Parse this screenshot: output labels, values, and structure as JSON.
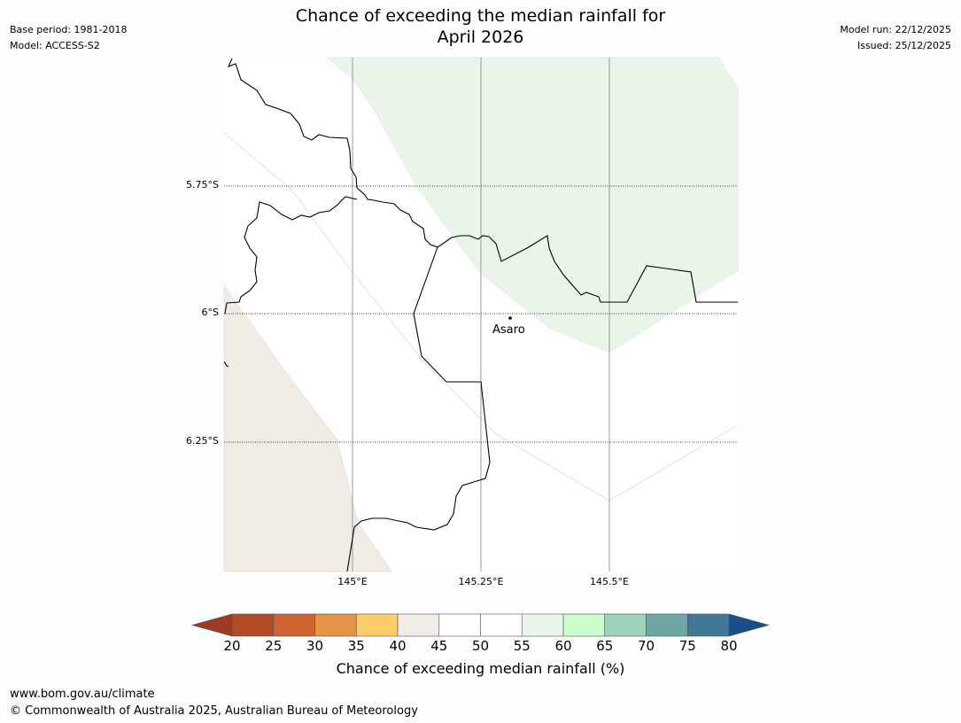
{
  "title": {
    "line1": "Chance of exceeding the median rainfall for",
    "line2": "April 2026"
  },
  "meta_left": {
    "base_period": "Base period: 1981-2018",
    "model": "Model: ACCESS-S2"
  },
  "meta_right": {
    "model_run": "Model run: 22/12/2025",
    "issued": "Issued: 25/12/2025"
  },
  "map": {
    "lat_labels": [
      "5.75°S",
      "6°S",
      "6.25°S"
    ],
    "lon_labels": [
      "145°E",
      "145.25°E",
      "145.5°E"
    ],
    "place": {
      "name": "Asaro"
    },
    "colors": {
      "land_outline": "#000000",
      "green_region": "#eaf5ea",
      "beige_region": "#f1ebe5"
    }
  },
  "colorbar": {
    "title": "Chance of exceeding median rainfall (%)",
    "ticks": [
      "20",
      "25",
      "30",
      "35",
      "40",
      "45",
      "50",
      "55",
      "60",
      "65",
      "70",
      "75",
      "80"
    ],
    "colors": [
      "#9c3a23",
      "#b14b27",
      "#ce6431",
      "#e39446",
      "#fecc68",
      "#f1ebe5",
      "#ffffff",
      "#ffffff",
      "#eaf5ea",
      "#cbfdcc",
      "#9ed2ba",
      "#6fa6a6",
      "#3f7899",
      "#1a4e87"
    ]
  },
  "footer": {
    "url": "www.bom.gov.au/climate",
    "copyright": "© Commonwealth of Australia 2025, Australian Bureau of Meteorology"
  }
}
